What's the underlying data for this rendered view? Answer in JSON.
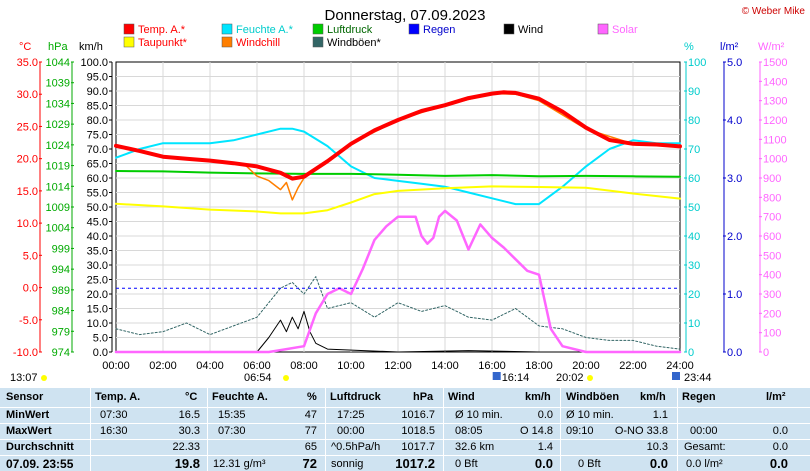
{
  "title": "Donnerstag, 07.09.2023",
  "copyright": "© Weber Mike",
  "colors": {
    "temp": "#ff0000",
    "humidity": "#00e5ff",
    "pressure": "#00cc00",
    "rain": "#0000ff",
    "wind": "#000000",
    "solar": "#ff66ff",
    "dewpoint": "#ffff00",
    "windchill": "#ff7f00",
    "gusts": "#336666",
    "table_bg": "#cfe3f1"
  },
  "legend": [
    {
      "label": "Temp. A.*",
      "color": "#ff0000",
      "text_color": "#ff0000"
    },
    {
      "label": "Feuchte A.*",
      "color": "#00e5ff",
      "text_color": "#00cccc"
    },
    {
      "label": "Luftdruck",
      "color": "#00cc00",
      "text_color": "#006600"
    },
    {
      "label": "Regen",
      "color": "#0000ff",
      "text_color": "#0000cc"
    },
    {
      "label": "Wind",
      "color": "#000000",
      "text_color": "#000000"
    },
    {
      "label": "Solar",
      "color": "#ff66ff",
      "text_color": "#ff66ff"
    },
    {
      "label": "Taupunkt*",
      "color": "#ffff00",
      "text_color": "#ff0000"
    },
    {
      "label": "Windchill",
      "color": "#ff7f00",
      "text_color": "#ff0000"
    },
    {
      "label": "Windböen*",
      "color": "#336666",
      "text_color": "#000000"
    }
  ],
  "units": {
    "temp": "°C",
    "pressure": "hPa",
    "wind": "km/h",
    "humidity": "%",
    "rain": "l/m²",
    "solar": "W/m²"
  },
  "axes": {
    "temp_ticks": [
      "35.0",
      "30.0",
      "25.0",
      "20.0",
      "15.0",
      "10.0",
      "5.0",
      "0.0",
      "-5.0",
      "-10.0"
    ],
    "pressure_ticks": [
      "1044",
      "1039",
      "1034",
      "1029",
      "1024",
      "1019",
      "1014",
      "1009",
      "1004",
      "999",
      "994",
      "989",
      "984",
      "979",
      "974"
    ],
    "wind_ticks": [
      "100.0",
      "95.0",
      "90.0",
      "85.0",
      "80.0",
      "75.0",
      "70.0",
      "65.0",
      "60.0",
      "55.0",
      "50.0",
      "45.0",
      "40.0",
      "35.0",
      "30.0",
      "25.0",
      "20.0",
      "15.0",
      "10.0",
      "5.0",
      "0.0"
    ],
    "humidity_ticks": [
      "100",
      "90",
      "80",
      "70",
      "60",
      "50",
      "40",
      "30",
      "20",
      "10",
      "0"
    ],
    "rain_ticks": [
      "5.0",
      "4.0",
      "3.0",
      "2.0",
      "1.0",
      "0.0"
    ],
    "solar_ticks": [
      "1500",
      "1400",
      "1300",
      "1200",
      "1100",
      "1000",
      "900",
      "800",
      "700",
      "600",
      "500",
      "400",
      "300",
      "200",
      "100",
      "0"
    ],
    "time_ticks": [
      "00:00",
      "02:00",
      "04:00",
      "06:00",
      "08:00",
      "10:00",
      "12:00",
      "14:00",
      "16:00",
      "18:00",
      "20:00",
      "22:00",
      "24:00"
    ]
  },
  "markers": {
    "moonrise": "13:07",
    "sunrise": "06:54",
    "sunset": "20:02",
    "solar_min": "16:14",
    "rain_end": "23:44"
  },
  "chart_data": {
    "type": "line",
    "x_unit": "hour",
    "xlim": [
      0,
      24
    ],
    "series": [
      {
        "name": "Temp. A.*",
        "axis": "°C",
        "ylim": [
          -10,
          35
        ],
        "x": [
          0,
          1,
          2,
          3,
          4,
          5,
          6,
          7,
          7.5,
          8,
          9,
          10,
          11,
          12,
          13,
          14,
          15,
          16,
          16.5,
          17,
          18,
          19,
          20,
          21,
          22,
          23,
          24
        ],
        "values": [
          22.0,
          21.2,
          20.3,
          20.0,
          19.7,
          19.3,
          18.8,
          17.8,
          16.9,
          17.2,
          19.6,
          22.3,
          24.4,
          26.0,
          27.4,
          28.3,
          29.4,
          30.1,
          30.3,
          30.2,
          29.3,
          27.3,
          24.8,
          22.9,
          22.3,
          22.2,
          21.9
        ]
      },
      {
        "name": "Taupunkt*",
        "axis": "°C",
        "ylim": [
          -10,
          35
        ],
        "x": [
          0,
          2,
          4,
          6,
          7,
          8,
          9,
          10,
          11,
          12,
          14,
          16,
          18,
          20,
          22,
          24
        ],
        "values": [
          13.0,
          12.6,
          12.1,
          11.8,
          11.5,
          11.5,
          12.0,
          13.2,
          14.5,
          15.0,
          15.4,
          15.7,
          15.6,
          15.5,
          14.6,
          13.8
        ]
      },
      {
        "name": "Windchill",
        "axis": "°C",
        "ylim": [
          -10,
          35
        ],
        "x": [
          0,
          2,
          4,
          5.5,
          6,
          6.5,
          7,
          7.25,
          7.5,
          7.75,
          8,
          9,
          10,
          12,
          14,
          16,
          17,
          18,
          20,
          22,
          24
        ],
        "values": [
          22.0,
          20.3,
          19.7,
          19.0,
          17.3,
          16.6,
          15.2,
          16.3,
          13.6,
          15.5,
          17.0,
          19.6,
          22.3,
          26.0,
          28.3,
          30.1,
          30.0,
          29.0,
          24.6,
          22.3,
          21.9
        ]
      },
      {
        "name": "Feuchte A.*",
        "axis": "%",
        "ylim": [
          0,
          100
        ],
        "x": [
          0,
          1,
          2,
          3,
          4,
          5,
          6,
          7,
          7.5,
          8,
          9,
          10,
          11,
          12,
          13,
          14,
          15,
          16,
          17,
          18,
          19,
          20,
          21,
          22,
          23,
          24
        ],
        "values": [
          67,
          70,
          72,
          72,
          72,
          73,
          75,
          77,
          77,
          76,
          71,
          64,
          60,
          59,
          58,
          57,
          55,
          53,
          51,
          51,
          57,
          64,
          70,
          73,
          72,
          72
        ]
      },
      {
        "name": "Luftdruck",
        "axis": "hPa",
        "ylim": [
          974,
          1044
        ],
        "x": [
          0,
          2,
          4,
          6,
          8,
          10,
          12,
          14,
          16,
          18,
          20,
          22,
          24
        ],
        "values": [
          1017.7,
          1017.6,
          1017.3,
          1017.1,
          1017.0,
          1017.0,
          1016.8,
          1016.5,
          1016.7,
          1016.4,
          1016.5,
          1016.4,
          1016.3
        ]
      },
      {
        "name": "Wind",
        "axis": "km/h",
        "ylim": [
          0,
          100
        ],
        "x": [
          0,
          3,
          6,
          6.5,
          7,
          7.25,
          7.5,
          7.75,
          8,
          8.25,
          8.5,
          9,
          12,
          15,
          18,
          21,
          24
        ],
        "values": [
          0,
          0,
          0,
          5,
          11,
          7,
          12,
          8,
          14,
          7,
          3,
          1,
          0,
          0.5,
          0,
          0,
          0
        ]
      },
      {
        "name": "Windböen*",
        "axis": "km/h",
        "ylim": [
          0,
          100
        ],
        "x": [
          0,
          1,
          2,
          3,
          4,
          5,
          6,
          7,
          7.5,
          8,
          8.5,
          9,
          10,
          11,
          12,
          13,
          14,
          15,
          16,
          17,
          18,
          19,
          20,
          21,
          22,
          23,
          24
        ],
        "values": [
          8,
          6,
          7,
          10,
          6,
          9,
          12,
          22,
          24,
          20,
          26,
          15,
          17,
          12,
          17,
          14,
          16,
          12,
          11,
          15,
          9,
          8,
          5,
          4,
          4,
          2,
          1
        ]
      },
      {
        "name": "Solar",
        "axis": "W/m²",
        "ylim": [
          0,
          1500
        ],
        "x": [
          0,
          6.5,
          7,
          8,
          8.5,
          9,
          9.5,
          10,
          10.5,
          11,
          11.5,
          12,
          12.75,
          13,
          13.25,
          13.5,
          13.75,
          14,
          14.5,
          15,
          15.5,
          16,
          16.5,
          17,
          17.5,
          18,
          18.5,
          19,
          20,
          24
        ],
        "values": [
          0,
          0,
          10,
          30,
          200,
          300,
          330,
          300,
          430,
          580,
          650,
          700,
          700,
          600,
          560,
          590,
          700,
          730,
          680,
          530,
          660,
          590,
          540,
          480,
          420,
          400,
          120,
          30,
          0,
          0
        ]
      }
    ],
    "rain_total_line": {
      "axis": "l/m²",
      "value": 1.1
    }
  },
  "table": {
    "sensor_label": "Sensor",
    "min_label": "MinWert",
    "max_label": "MaxWert",
    "avg_label": "Durchschnitt",
    "current_label": "07.09. 23:55",
    "temp": {
      "header": "Temp. A.",
      "unit": "°C",
      "min_time": "07:30",
      "min_val": "16.5",
      "max_time": "16:30",
      "max_val": "30.3",
      "avg": "22.33",
      "current": "19.8"
    },
    "humidity": {
      "header": "Feuchte A.",
      "unit": "%",
      "min_time": "15:35",
      "min_val": "47",
      "max_time": "07:30",
      "max_val": "77",
      "avg": "65",
      "abs_hum": "12.31 g/m³",
      "current": "72"
    },
    "pressure": {
      "header": "Luftdruck",
      "unit": "hPa",
      "min_time": "17:25",
      "min_val": "1016.7",
      "max_time": "00:00",
      "max_val": "1018.5",
      "trend": "^0.5hPa/h",
      "avg": "1017.7",
      "forecast": "sonnig",
      "current": "1017.2"
    },
    "wind": {
      "header": "Wind",
      "unit": "km/h",
      "min_label": "Ø 10 min.",
      "min_val": "0.0",
      "max_time": "08:05",
      "max_dir": "O 14.8",
      "distance": "32.6 km",
      "avg": "1.4",
      "bft": "0 Bft",
      "current": "0.0"
    },
    "gusts": {
      "header": "Windböen",
      "unit": "km/h",
      "min_label": "Ø 10 min.",
      "min_val": "1.1",
      "max_time": "09:10",
      "max_dir": "O-NO 33.8",
      "avg": "10.3",
      "bft": "0 Bft",
      "current": "0.0"
    },
    "rain": {
      "header": "Regen",
      "unit": "l/m²",
      "max_time": "00:00",
      "max_val": "0.0",
      "total_label": "Gesamt:",
      "total": "0.0",
      "current": "0.0 l/m²",
      "current_val": "0.0"
    }
  }
}
